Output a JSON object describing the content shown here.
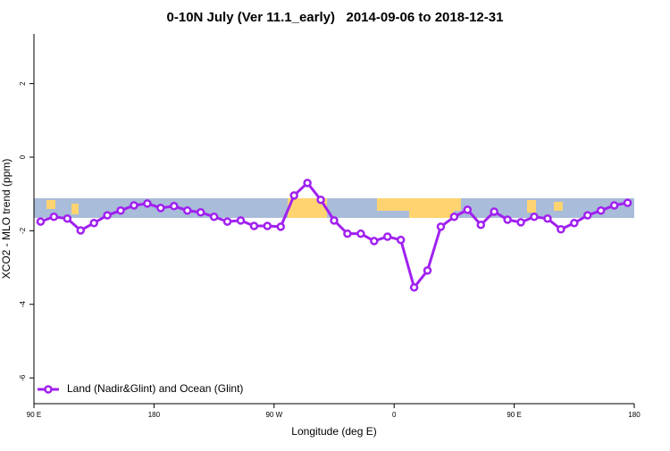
{
  "chart_data": {
    "type": "line",
    "title": "0-10N July (Ver 11.1_early)   2014-09-06 to 2018-12-31",
    "x_label": "Longitude (deg E)",
    "y_label": "XCO2 - MLO trend (ppm)",
    "legend": "bottom-left",
    "xlim": [
      90,
      540
    ],
    "xticks": [
      {
        "value": 90,
        "label": "90 E"
      },
      {
        "value": 180,
        "label": "180"
      },
      {
        "value": 270,
        "label": "90 W"
      },
      {
        "value": 360,
        "label": "0"
      },
      {
        "value": 450,
        "label": "90 E"
      },
      {
        "value": 540,
        "label": "180"
      }
    ],
    "ylim": [
      -6.7,
      3.35
    ],
    "yticks": [
      2,
      0,
      -2,
      -4,
      -6
    ],
    "x": [
      95,
      105,
      115,
      125,
      135,
      145,
      155,
      165,
      175,
      185,
      195,
      205,
      215,
      225,
      235,
      245,
      255,
      265,
      275,
      285,
      295,
      305,
      315,
      325,
      335,
      345,
      355,
      365,
      375,
      385,
      395,
      405,
      415,
      425,
      435,
      445,
      455,
      465,
      475,
      485,
      495,
      505,
      515,
      525,
      535
    ],
    "series": [
      {
        "name": "Land (Nadir&Glint) and Ocean (Glint)",
        "color": "#a020f0",
        "values": [
          -1.75,
          -1.62,
          -1.67,
          -1.99,
          -1.79,
          -1.58,
          -1.45,
          -1.31,
          -1.26,
          -1.38,
          -1.33,
          -1.45,
          -1.5,
          -1.62,
          -1.75,
          -1.72,
          -1.87,
          -1.87,
          -1.89,
          -1.04,
          -0.7,
          -1.16,
          -1.72,
          -2.08,
          -2.08,
          -2.28,
          -2.16,
          -2.25,
          -3.54,
          -3.08,
          -1.89,
          -1.62,
          -1.43,
          -1.84,
          -1.48,
          -1.7,
          -1.77,
          -1.62,
          -1.67,
          -1.96,
          -1.79,
          -1.58,
          -1.45,
          -1.31,
          -1.24
        ]
      }
    ]
  }
}
